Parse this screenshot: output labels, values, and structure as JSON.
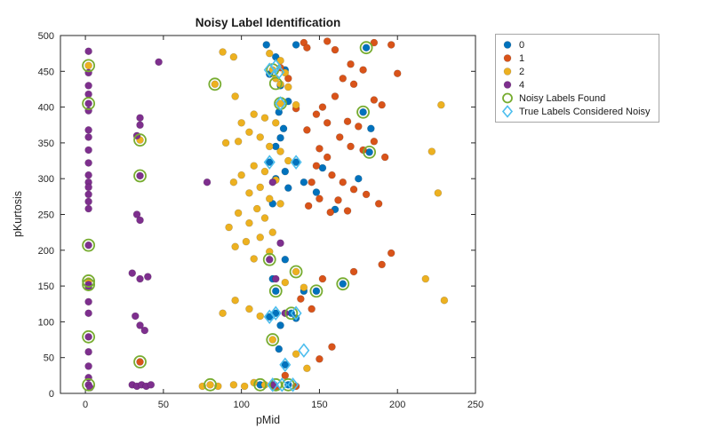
{
  "colors": {
    "axis": "#262626",
    "legend_border": "#a6a6a6",
    "class0": "#0072BD",
    "class1": "#D95319",
    "class2": "#EDB120",
    "class4": "#7E2F8E",
    "noisy_found": "#77AC30",
    "true_noisy": "#4DBEEE"
  },
  "chart_data": {
    "type": "scatter",
    "title": "Noisy Label Identification",
    "xlabel": "pMid",
    "ylabel": "pKurtosis",
    "xlim": [
      -16,
      250
    ],
    "ylim": [
      0,
      500
    ],
    "xticks": [
      0,
      50,
      100,
      150,
      200,
      250
    ],
    "yticks": [
      0,
      50,
      100,
      150,
      200,
      250,
      300,
      350,
      400,
      450,
      500
    ],
    "grid": false,
    "legend_position": "outside-top-right",
    "series": [
      {
        "name": "0",
        "marker": "circle-filled",
        "color": "#0072BD",
        "points": [
          [
            116,
            487
          ],
          [
            135,
            487
          ],
          [
            122,
            470
          ],
          [
            128,
            452
          ],
          [
            118,
            446
          ],
          [
            125,
            430
          ],
          [
            130,
            408
          ],
          [
            124,
            393
          ],
          [
            180,
            483
          ],
          [
            178,
            393
          ],
          [
            183,
            370
          ],
          [
            182,
            337
          ],
          [
            127,
            370
          ],
          [
            125,
            357
          ],
          [
            122,
            345
          ],
          [
            118,
            323
          ],
          [
            135,
            323
          ],
          [
            128,
            310
          ],
          [
            122,
            300
          ],
          [
            140,
            295
          ],
          [
            130,
            287
          ],
          [
            120,
            265
          ],
          [
            152,
            315
          ],
          [
            160,
            257
          ],
          [
            175,
            300
          ],
          [
            148,
            281
          ],
          [
            128,
            187
          ],
          [
            120,
            160
          ],
          [
            122,
            143
          ],
          [
            148,
            143
          ],
          [
            165,
            153
          ],
          [
            132,
            112
          ],
          [
            122,
            112
          ],
          [
            118,
            107
          ],
          [
            135,
            105
          ],
          [
            125,
            95
          ],
          [
            140,
            143
          ],
          [
            128,
            40
          ],
          [
            120,
            12
          ],
          [
            130,
            12
          ],
          [
            112,
            12
          ],
          [
            124,
            62
          ]
        ]
      },
      {
        "name": "1",
        "marker": "circle-filled",
        "color": "#D95319",
        "points": [
          [
            140,
            490
          ],
          [
            155,
            492
          ],
          [
            185,
            490
          ],
          [
            196,
            487
          ],
          [
            160,
            480
          ],
          [
            200,
            447
          ],
          [
            170,
            460
          ],
          [
            178,
            452
          ],
          [
            165,
            440
          ],
          [
            172,
            432
          ],
          [
            185,
            410
          ],
          [
            190,
            403
          ],
          [
            160,
            415
          ],
          [
            152,
            400
          ],
          [
            148,
            390
          ],
          [
            155,
            378
          ],
          [
            168,
            380
          ],
          [
            175,
            373
          ],
          [
            163,
            358
          ],
          [
            170,
            345
          ],
          [
            178,
            340
          ],
          [
            185,
            352
          ],
          [
            192,
            330
          ],
          [
            155,
            330
          ],
          [
            148,
            318
          ],
          [
            158,
            305
          ],
          [
            165,
            295
          ],
          [
            172,
            285
          ],
          [
            180,
            278
          ],
          [
            188,
            265
          ],
          [
            150,
            272
          ],
          [
            143,
            262
          ],
          [
            157,
            253
          ],
          [
            196,
            196
          ],
          [
            190,
            180
          ],
          [
            172,
            170
          ],
          [
            152,
            160
          ],
          [
            138,
            132
          ],
          [
            145,
            118
          ],
          [
            158,
            65
          ],
          [
            150,
            48
          ],
          [
            128,
            25
          ],
          [
            135,
            10
          ],
          [
            122,
            8
          ],
          [
            35,
            44
          ],
          [
            145,
            295
          ],
          [
            162,
            270
          ],
          [
            168,
            255
          ],
          [
            150,
            342
          ],
          [
            142,
            368
          ],
          [
            135,
            398
          ],
          [
            130,
            440
          ],
          [
            125,
            455
          ],
          [
            142,
            483
          ]
        ]
      },
      {
        "name": "2",
        "marker": "circle-filled",
        "color": "#EDB120",
        "points": [
          [
            88,
            477
          ],
          [
            95,
            470
          ],
          [
            118,
            475
          ],
          [
            125,
            465
          ],
          [
            120,
            452
          ],
          [
            128,
            448
          ],
          [
            122,
            440
          ],
          [
            83,
            432
          ],
          [
            125,
            432
          ],
          [
            130,
            428
          ],
          [
            96,
            415
          ],
          [
            125,
            405
          ],
          [
            135,
            403
          ],
          [
            228,
            403
          ],
          [
            108,
            390
          ],
          [
            115,
            385
          ],
          [
            100,
            378
          ],
          [
            122,
            378
          ],
          [
            105,
            365
          ],
          [
            112,
            358
          ],
          [
            98,
            352
          ],
          [
            90,
            350
          ],
          [
            118,
            345
          ],
          [
            125,
            338
          ],
          [
            222,
            338
          ],
          [
            130,
            325
          ],
          [
            108,
            318
          ],
          [
            115,
            310
          ],
          [
            100,
            305
          ],
          [
            122,
            298
          ],
          [
            95,
            295
          ],
          [
            112,
            288
          ],
          [
            105,
            280
          ],
          [
            226,
            280
          ],
          [
            118,
            272
          ],
          [
            125,
            265
          ],
          [
            110,
            258
          ],
          [
            98,
            252
          ],
          [
            115,
            245
          ],
          [
            105,
            238
          ],
          [
            92,
            232
          ],
          [
            120,
            225
          ],
          [
            112,
            218
          ],
          [
            103,
            212
          ],
          [
            96,
            205
          ],
          [
            118,
            198
          ],
          [
            108,
            188
          ],
          [
            135,
            170
          ],
          [
            128,
            155
          ],
          [
            140,
            148
          ],
          [
            96,
            130
          ],
          [
            105,
            118
          ],
          [
            88,
            112
          ],
          [
            112,
            108
          ],
          [
            120,
            75
          ],
          [
            135,
            55
          ],
          [
            142,
            35
          ],
          [
            108,
            15
          ],
          [
            95,
            12
          ],
          [
            85,
            10
          ],
          [
            230,
            130
          ],
          [
            218,
            160
          ],
          [
            2,
            458
          ],
          [
            2,
            157
          ],
          [
            35,
            354
          ],
          [
            80,
            12
          ],
          [
            75,
            10
          ],
          [
            102,
            10
          ],
          [
            115,
            12
          ]
        ]
      },
      {
        "name": "4",
        "marker": "circle-filled",
        "color": "#7E2F8E",
        "points": [
          [
            2,
            478
          ],
          [
            2,
            448
          ],
          [
            2,
            430
          ],
          [
            2,
            418
          ],
          [
            2,
            405
          ],
          [
            2,
            395
          ],
          [
            2,
            368
          ],
          [
            2,
            358
          ],
          [
            2,
            340
          ],
          [
            2,
            322
          ],
          [
            2,
            305
          ],
          [
            2,
            295
          ],
          [
            2,
            288
          ],
          [
            2,
            278
          ],
          [
            2,
            268
          ],
          [
            2,
            258
          ],
          [
            2,
            207
          ],
          [
            2,
            152
          ],
          [
            2,
            148
          ],
          [
            2,
            128
          ],
          [
            2,
            112
          ],
          [
            2,
            79
          ],
          [
            2,
            58
          ],
          [
            2,
            38
          ],
          [
            2,
            22
          ],
          [
            2,
            12
          ],
          [
            3,
            8
          ],
          [
            35,
            385
          ],
          [
            35,
            375
          ],
          [
            33,
            360
          ],
          [
            35,
            304
          ],
          [
            33,
            250
          ],
          [
            35,
            242
          ],
          [
            30,
            168
          ],
          [
            35,
            160
          ],
          [
            40,
            163
          ],
          [
            32,
            108
          ],
          [
            35,
            95
          ],
          [
            38,
            88
          ],
          [
            30,
            12
          ],
          [
            33,
            10
          ],
          [
            36,
            12
          ],
          [
            39,
            10
          ],
          [
            42,
            12
          ],
          [
            47,
            463
          ],
          [
            78,
            295
          ],
          [
            120,
            295
          ],
          [
            125,
            210
          ],
          [
            118,
            187
          ],
          [
            122,
            160
          ],
          [
            128,
            112
          ],
          [
            121,
            12
          ]
        ]
      },
      {
        "name": "Noisy Labels Found",
        "marker": "circle-outline",
        "color": "#77AC30",
        "points": [
          [
            2,
            458
          ],
          [
            2,
            405
          ],
          [
            2,
            207
          ],
          [
            2,
            157
          ],
          [
            2,
            152
          ],
          [
            2,
            79
          ],
          [
            2,
            12
          ],
          [
            35,
            354
          ],
          [
            35,
            304
          ],
          [
            35,
            44
          ],
          [
            80,
            12
          ],
          [
            83,
            432
          ],
          [
            120,
            452
          ],
          [
            122,
            433
          ],
          [
            125,
            405
          ],
          [
            180,
            483
          ],
          [
            178,
            393
          ],
          [
            182,
            337
          ],
          [
            118,
            187
          ],
          [
            135,
            170
          ],
          [
            122,
            143
          ],
          [
            148,
            143
          ],
          [
            165,
            153
          ],
          [
            132,
            112
          ],
          [
            120,
            75
          ],
          [
            122,
            12
          ],
          [
            130,
            12
          ],
          [
            112,
            12
          ]
        ]
      },
      {
        "name": "True Labels Considered Noisy",
        "marker": "diamond-outline",
        "color": "#4DBEEE",
        "points": [
          [
            118,
            452
          ],
          [
            122,
            457
          ],
          [
            124,
            449
          ],
          [
            125,
            405
          ],
          [
            118,
            323
          ],
          [
            135,
            323
          ],
          [
            118,
            107
          ],
          [
            122,
            112
          ],
          [
            135,
            112
          ],
          [
            140,
            60
          ],
          [
            128,
            40
          ],
          [
            120,
            12
          ],
          [
            126,
            12
          ],
          [
            133,
            12
          ]
        ]
      }
    ]
  }
}
